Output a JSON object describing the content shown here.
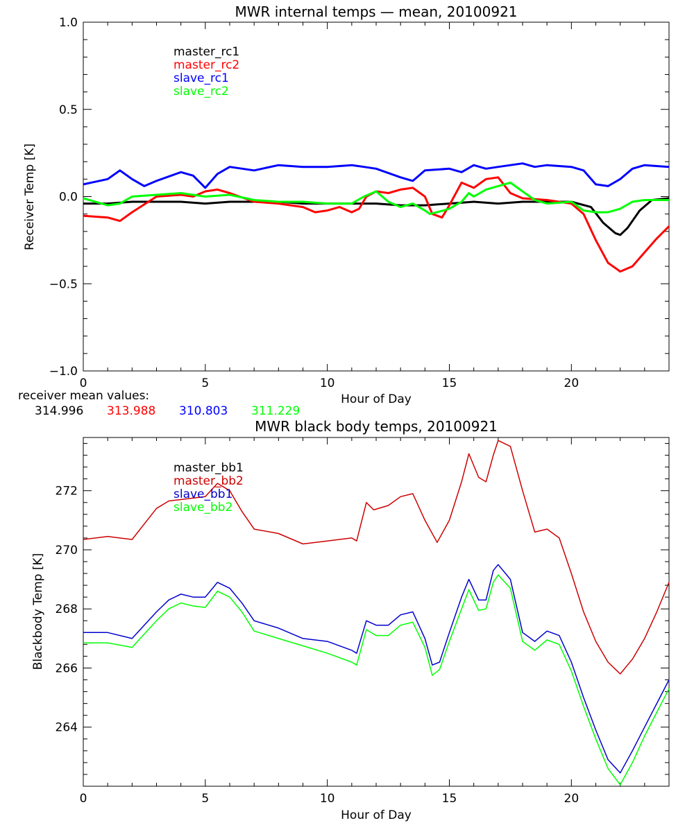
{
  "chart_data": [
    {
      "type": "line",
      "title": "MWR internal temps — mean, 20100921",
      "xlabel": "Hour of Day",
      "ylabel": "Receiver Temp [K]",
      "xlim": [
        0,
        24
      ],
      "ylim": [
        -1.0,
        1.0
      ],
      "xticks": [
        0,
        5,
        10,
        15,
        20
      ],
      "xtick_labels": [
        "0",
        "5",
        "10",
        "15",
        "20"
      ],
      "yticks": [
        -1.0,
        -0.5,
        0.0,
        0.5,
        1.0
      ],
      "ytick_labels": [
        "−1.0",
        "−0.5",
        "0.0",
        "0.5",
        "1.0"
      ],
      "grid": false,
      "legend_position": "top-left",
      "series": [
        {
          "name": "master_rc1",
          "color": "#000000",
          "x": [
            0,
            1,
            2,
            3,
            4,
            5,
            6,
            7,
            8,
            9,
            10,
            11,
            12,
            13,
            14,
            15,
            16,
            17,
            18,
            19,
            20,
            20.8,
            21.3,
            21.8,
            22.0,
            22.3,
            22.8,
            23.3,
            24
          ],
          "y": [
            -0.04,
            -0.04,
            -0.03,
            -0.03,
            -0.03,
            -0.04,
            -0.03,
            -0.03,
            -0.03,
            -0.04,
            -0.04,
            -0.04,
            -0.04,
            -0.05,
            -0.05,
            -0.04,
            -0.03,
            -0.04,
            -0.03,
            -0.03,
            -0.03,
            -0.06,
            -0.15,
            -0.21,
            -0.22,
            -0.18,
            -0.08,
            -0.02,
            -0.01
          ]
        },
        {
          "name": "master_rc2",
          "color": "#ff0000",
          "x": [
            0,
            1,
            1.5,
            2,
            3,
            4,
            4.5,
            5,
            5.5,
            6,
            7,
            8,
            9,
            9.5,
            10,
            10.5,
            11,
            11.3,
            11.6,
            12,
            12.5,
            13,
            13.5,
            14,
            14.3,
            14.7,
            15,
            15.5,
            16,
            16.5,
            17,
            17.5,
            18,
            19,
            20,
            20.5,
            21,
            21.5,
            22,
            22.5,
            23,
            23.5,
            24
          ],
          "y": [
            -0.11,
            -0.12,
            -0.14,
            -0.09,
            0.0,
            0.01,
            0.0,
            0.03,
            0.04,
            0.02,
            -0.03,
            -0.04,
            -0.06,
            -0.09,
            -0.08,
            -0.06,
            -0.09,
            -0.07,
            0.0,
            0.03,
            0.02,
            0.04,
            0.05,
            0.0,
            -0.1,
            -0.12,
            -0.05,
            0.08,
            0.05,
            0.1,
            0.11,
            0.02,
            -0.01,
            -0.02,
            -0.04,
            -0.1,
            -0.25,
            -0.38,
            -0.43,
            -0.4,
            -0.32,
            -0.24,
            -0.17
          ]
        },
        {
          "name": "slave_rc1",
          "color": "#0000ff",
          "x": [
            0,
            1,
            1.5,
            2,
            2.5,
            3,
            4,
            4.5,
            5,
            5.5,
            6,
            7,
            8,
            9,
            10,
            11,
            11.5,
            12,
            13,
            13.5,
            14,
            15,
            15.5,
            16,
            16.5,
            17,
            17.5,
            18,
            18.5,
            19,
            20,
            20.5,
            21,
            21.5,
            22,
            22.5,
            23,
            24
          ],
          "y": [
            0.07,
            0.1,
            0.15,
            0.1,
            0.06,
            0.09,
            0.14,
            0.12,
            0.05,
            0.13,
            0.17,
            0.15,
            0.18,
            0.17,
            0.17,
            0.18,
            0.17,
            0.16,
            0.11,
            0.09,
            0.15,
            0.16,
            0.14,
            0.18,
            0.16,
            0.17,
            0.18,
            0.19,
            0.17,
            0.18,
            0.17,
            0.15,
            0.07,
            0.06,
            0.1,
            0.16,
            0.18,
            0.17
          ]
        },
        {
          "name": "slave_rc2",
          "color": "#00ff00",
          "x": [
            0,
            1,
            1.5,
            2,
            3,
            4,
            5,
            6,
            7,
            8,
            9,
            10,
            11,
            11.5,
            12,
            12.5,
            13,
            13.5,
            14,
            14.2,
            14.5,
            15,
            15.5,
            15.8,
            16,
            16.5,
            17,
            17.5,
            18,
            18.5,
            19,
            20,
            20.5,
            21,
            21.5,
            22,
            22.5,
            23,
            24
          ],
          "y": [
            -0.01,
            -0.05,
            -0.04,
            0.0,
            0.01,
            0.02,
            0.0,
            0.01,
            -0.02,
            -0.03,
            -0.03,
            -0.04,
            -0.04,
            0.0,
            0.03,
            -0.03,
            -0.06,
            -0.04,
            -0.08,
            -0.1,
            -0.09,
            -0.07,
            -0.03,
            0.02,
            0.0,
            0.04,
            0.06,
            0.08,
            0.03,
            -0.02,
            -0.04,
            -0.03,
            -0.08,
            -0.09,
            -0.09,
            -0.07,
            -0.03,
            -0.02,
            -0.02
          ]
        }
      ],
      "annotations": {
        "label": "receiver mean values:",
        "values": [
          "314.996",
          "313.988",
          "310.803",
          "311.229"
        ],
        "colors": [
          "#000000",
          "#ff0000",
          "#0000ff",
          "#00ff00"
        ]
      }
    },
    {
      "type": "line",
      "title": "MWR black body temps, 20100921",
      "xlabel": "Hour of Day",
      "ylabel": "Blackbody Temp [K]",
      "xlim": [
        0,
        24
      ],
      "ylim": [
        262,
        273.8
      ],
      "xticks": [
        0,
        5,
        10,
        15,
        20
      ],
      "xtick_labels": [
        "0",
        "5",
        "10",
        "15",
        "20"
      ],
      "yticks": [
        264,
        266,
        268,
        270,
        272
      ],
      "ytick_labels": [
        "264",
        "266",
        "268",
        "270",
        "272"
      ],
      "grid": false,
      "legend_position": "top-left",
      "series": [
        {
          "name": "master_bb1",
          "color": "#000000",
          "x": [],
          "y": []
        },
        {
          "name": "master_bb2",
          "color": "#cc0000",
          "x": [
            0,
            1,
            2,
            3,
            3.5,
            4,
            5,
            5.5,
            6,
            6.5,
            7,
            8,
            9,
            10,
            11,
            11.2,
            11.6,
            11.9,
            12.5,
            13,
            13.5,
            14,
            14.5,
            15,
            15.5,
            15.8,
            16.2,
            16.5,
            16.8,
            17,
            17.5,
            18,
            18.5,
            19,
            19.5,
            20,
            20.5,
            21,
            21.5,
            22,
            22.5,
            23,
            23.5,
            24
          ],
          "y": [
            270.35,
            270.45,
            270.35,
            271.4,
            271.65,
            271.7,
            271.8,
            272.25,
            272.0,
            271.3,
            270.7,
            270.55,
            270.2,
            270.3,
            270.4,
            270.3,
            271.6,
            271.35,
            271.5,
            271.8,
            271.9,
            271.0,
            270.25,
            271.0,
            272.3,
            273.25,
            272.45,
            272.3,
            273.2,
            273.7,
            273.5,
            272.0,
            270.6,
            270.7,
            270.4,
            269.2,
            267.9,
            266.9,
            266.2,
            265.8,
            266.3,
            267.0,
            267.9,
            268.9
          ]
        },
        {
          "name": "slave_bb1",
          "color": "#0000cc",
          "x": [
            0,
            1,
            2,
            3,
            3.5,
            4,
            4.5,
            5,
            5.5,
            6,
            6.5,
            7,
            8,
            9,
            10,
            11,
            11.2,
            11.6,
            12,
            12.5,
            13,
            13.5,
            14,
            14.3,
            14.6,
            15,
            15.5,
            15.8,
            16.2,
            16.5,
            16.8,
            17,
            17.5,
            18,
            18.5,
            19,
            19.5,
            20,
            20.5,
            21,
            21.5,
            22,
            22.5,
            23,
            23.5,
            24
          ],
          "y": [
            267.2,
            267.2,
            267.0,
            267.9,
            268.3,
            268.5,
            268.4,
            268.4,
            268.9,
            268.7,
            268.2,
            267.6,
            267.35,
            267.0,
            266.9,
            266.6,
            266.5,
            267.6,
            267.45,
            267.45,
            267.8,
            267.9,
            267.0,
            266.1,
            266.2,
            267.2,
            268.4,
            269.0,
            268.3,
            268.3,
            269.3,
            269.5,
            269.0,
            267.2,
            266.9,
            267.25,
            267.1,
            266.2,
            265.0,
            263.9,
            262.9,
            262.45,
            263.2,
            264.0,
            264.8,
            265.6
          ]
        },
        {
          "name": "slave_bb2",
          "color": "#00ff00",
          "x": [
            0,
            1,
            2,
            3,
            3.5,
            4,
            4.5,
            5,
            5.5,
            6,
            6.5,
            7,
            8,
            9,
            10,
            11,
            11.2,
            11.6,
            12,
            12.5,
            13,
            13.5,
            14,
            14.3,
            14.6,
            15,
            15.5,
            15.8,
            16.2,
            16.5,
            16.8,
            17,
            17.5,
            18,
            18.5,
            19,
            19.5,
            20,
            20.5,
            21,
            21.5,
            22,
            22.5,
            23,
            23.5,
            24
          ],
          "y": [
            266.85,
            266.85,
            266.7,
            267.6,
            268.0,
            268.2,
            268.1,
            268.05,
            268.6,
            268.4,
            267.9,
            267.25,
            267.0,
            266.75,
            266.5,
            266.2,
            266.1,
            267.3,
            267.1,
            267.1,
            267.45,
            267.55,
            266.7,
            265.75,
            265.95,
            266.9,
            268.0,
            268.65,
            267.95,
            268.0,
            268.9,
            269.15,
            268.7,
            266.9,
            266.6,
            266.95,
            266.8,
            265.9,
            264.7,
            263.6,
            262.6,
            262.05,
            262.8,
            263.7,
            264.5,
            265.3
          ]
        }
      ]
    }
  ]
}
